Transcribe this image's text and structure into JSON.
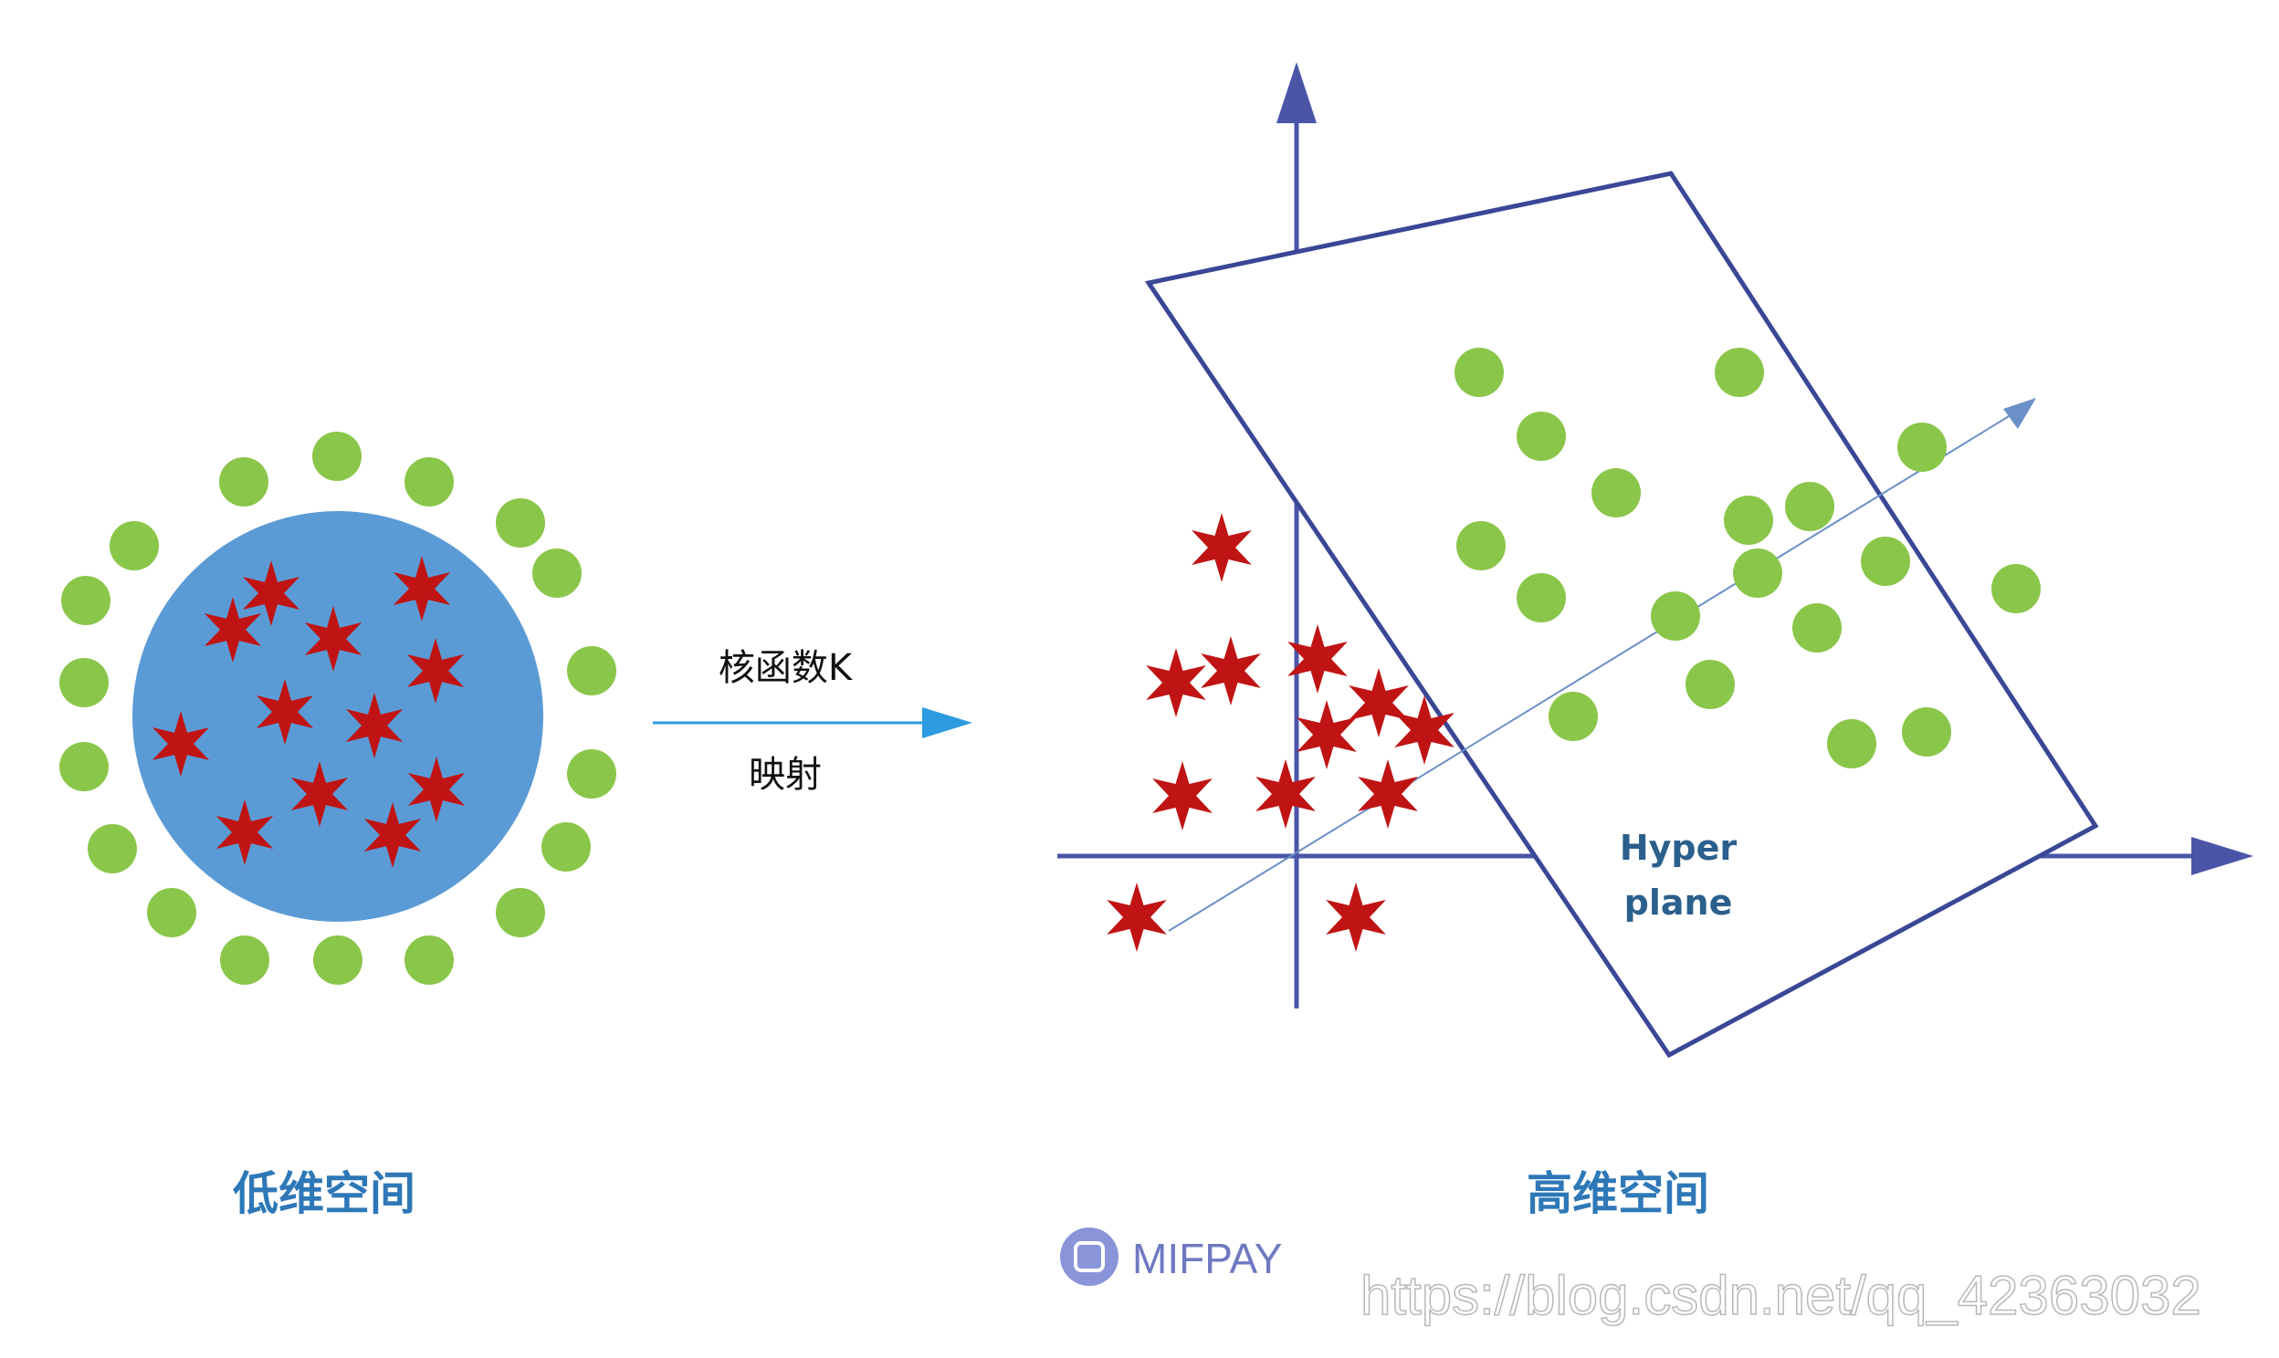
{
  "left_panel": {
    "caption": "低维空间"
  },
  "mapping": {
    "top_label": "核函数K",
    "bottom_label": "映射"
  },
  "right_panel": {
    "caption": "高维空间",
    "plane_label_line1": "Hyper",
    "plane_label_line2": "plane"
  },
  "watermark": {
    "brand": "MIFPAY",
    "url": "https://blog.csdn.net/qq_42363032"
  },
  "colors": {
    "green_dot": "#8ac64a",
    "red_star": "#c01414",
    "blue_circle": "#5b9bd5",
    "axis": "#4a55a8",
    "caption": "#2e78b8",
    "arrow": "#2d9be0"
  }
}
